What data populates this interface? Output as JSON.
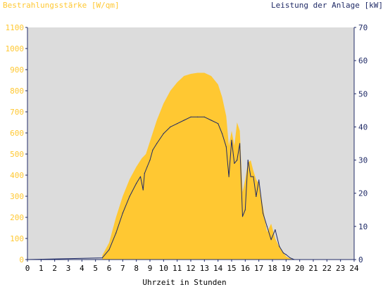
{
  "chart_data": {
    "type": "area",
    "title_left": "Bestrahlungsstärke [W/qm]",
    "title_right": "Leistung der Anlage [kW]",
    "xlabel": "Uhrzeit in Stunden",
    "x_ticks": [
      "0",
      "1",
      "2",
      "3",
      "4",
      "5",
      "6",
      "7",
      "8",
      "9",
      "10",
      "11",
      "12",
      "13",
      "14",
      "15",
      "16",
      "17",
      "18",
      "19",
      "20",
      "21",
      "22",
      "23",
      "24"
    ],
    "y_left_ticks": [
      "0",
      "100",
      "200",
      "300",
      "400",
      "500",
      "600",
      "700",
      "800",
      "900",
      "1000",
      "1100"
    ],
    "y_right_ticks": [
      "0",
      "10",
      "20",
      "30",
      "40",
      "50",
      "60",
      "70"
    ],
    "xlim": [
      0,
      24
    ],
    "ylim_left": [
      0,
      1100
    ],
    "ylim_right": [
      0,
      70
    ],
    "colors": {
      "irradiance_fill": "#ffc832",
      "power_line": "#1f2a66",
      "plot_background": "#dcdcdc",
      "axis": "#1f2a66"
    },
    "series": [
      {
        "axis": "left",
        "style": "area",
        "x": [
          5.5,
          6.0,
          6.5,
          7.0,
          7.5,
          8.0,
          8.4,
          8.7,
          9.0,
          9.5,
          10.0,
          10.5,
          11.0,
          11.5,
          12.0,
          12.5,
          13.0,
          13.5,
          14.0,
          14.3,
          14.6,
          14.8,
          15.0,
          15.2,
          15.4,
          15.6,
          15.8,
          16.0,
          16.2,
          16.4,
          16.6,
          16.8,
          17.0,
          17.3,
          17.6,
          17.9,
          18.2,
          18.5,
          18.8,
          19.0,
          19.3,
          19.6
        ],
        "y": [
          20,
          80,
          200,
          300,
          380,
          440,
          480,
          500,
          560,
          660,
          740,
          800,
          840,
          870,
          880,
          885,
          885,
          870,
          830,
          770,
          680,
          540,
          610,
          540,
          650,
          610,
          320,
          380,
          460,
          470,
          420,
          380,
          360,
          250,
          130,
          170,
          100,
          60,
          35,
          15,
          5,
          0
        ]
      },
      {
        "axis": "right",
        "style": "line",
        "x": [
          5.5,
          6.0,
          6.5,
          7.0,
          7.5,
          8.0,
          8.3,
          8.5,
          8.6,
          8.8,
          9.0,
          9.2,
          9.5,
          10.0,
          10.5,
          11.0,
          11.5,
          12.0,
          12.5,
          13.0,
          13.5,
          14.0,
          14.3,
          14.6,
          14.8,
          15.0,
          15.2,
          15.4,
          15.6,
          15.8,
          16.0,
          16.2,
          16.4,
          16.6,
          16.8,
          17.0,
          17.3,
          17.6,
          17.9,
          18.2,
          18.5,
          18.8,
          19.0,
          19.3,
          19.6
        ],
        "y": [
          0.5,
          3,
          8,
          14,
          19,
          23,
          25,
          21,
          26,
          28,
          30,
          33,
          35,
          38,
          40,
          41,
          42,
          43,
          43,
          43,
          42,
          41,
          38,
          34,
          25,
          36,
          29,
          30,
          35,
          13,
          15,
          30,
          25,
          25,
          19,
          24,
          14,
          10,
          6,
          9,
          4,
          2,
          1.5,
          0.5,
          0
        ]
      }
    ]
  }
}
